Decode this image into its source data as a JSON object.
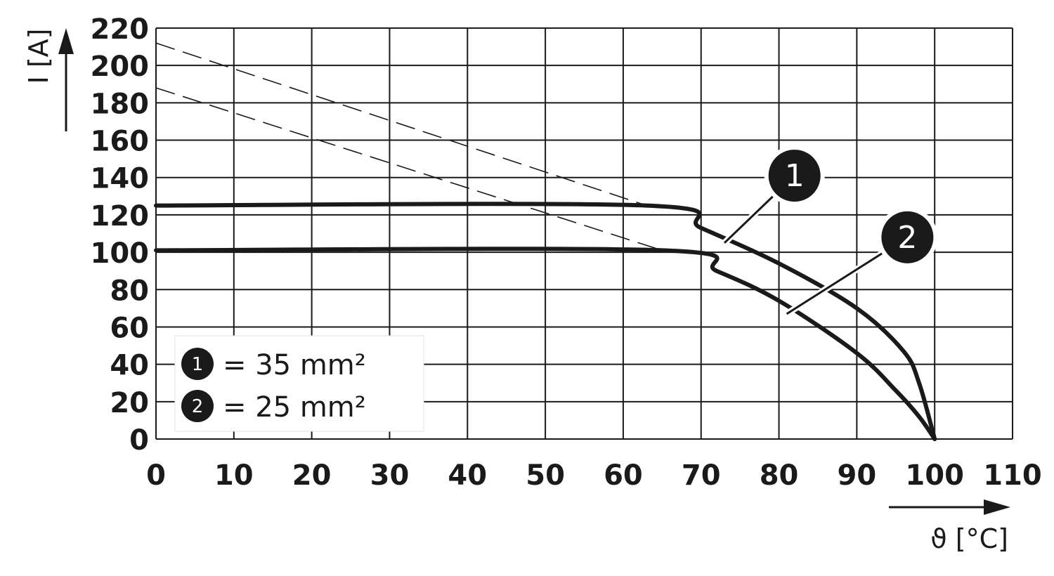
{
  "chart_data": {
    "type": "line",
    "xlabel": "ϑ [°C]",
    "ylabel": "I [A]",
    "xlim": [
      0,
      110
    ],
    "ylim": [
      0,
      220
    ],
    "x_ticks": [
      "0",
      "10",
      "20",
      "30",
      "40",
      "50",
      "60",
      "70",
      "80",
      "90",
      "100",
      "110"
    ],
    "y_ticks": [
      "0",
      "20",
      "40",
      "60",
      "80",
      "100",
      "120",
      "140",
      "160",
      "180",
      "200",
      "220"
    ],
    "grid": true,
    "series": [
      {
        "badge": "1",
        "points": [
          [
            0,
            125
          ],
          [
            63,
            125
          ],
          [
            70,
            113
          ],
          [
            80,
            94
          ],
          [
            90,
            70
          ],
          [
            96,
            47
          ],
          [
            98,
            30
          ],
          [
            100,
            0
          ]
        ],
        "extrapolation": [
          [
            0,
            212
          ],
          [
            63,
            125
          ]
        ]
      },
      {
        "badge": "2",
        "points": [
          [
            0,
            101
          ],
          [
            65,
            101
          ],
          [
            72,
            90
          ],
          [
            80,
            74
          ],
          [
            90,
            46
          ],
          [
            95,
            26
          ],
          [
            98,
            12
          ],
          [
            100,
            0
          ]
        ],
        "extrapolation": [
          [
            0,
            188
          ],
          [
            65,
            101
          ]
        ]
      }
    ],
    "legend": {
      "placement": "bottom-left",
      "entries": [
        {
          "badge": "1",
          "text": "= 35 mm²"
        },
        {
          "badge": "2",
          "text": "= 25 mm²"
        }
      ]
    },
    "callouts": [
      {
        "badge": "1",
        "target": [
          73,
          105
        ],
        "anchor": [
          82,
          141
        ]
      },
      {
        "badge": "2",
        "target": [
          81,
          67
        ],
        "anchor": [
          96.5,
          108
        ]
      }
    ]
  }
}
